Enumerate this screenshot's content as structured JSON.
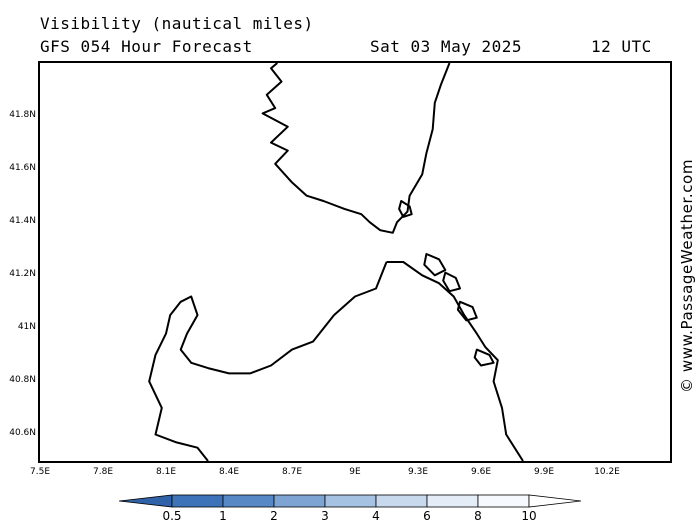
{
  "header": {
    "title": "Visibility (nautical miles)",
    "subtitle": "GFS 054 Hour Forecast",
    "date": "Sat 03 May 2025",
    "time": "12 UTC"
  },
  "watermark": "© www.PassageWeather.com",
  "map": {
    "lon_range": [
      7.5,
      10.5
    ],
    "lat_range": [
      40.5,
      42.0
    ],
    "lat_ticks": [
      {
        "value": 41.8,
        "label": "41.8N"
      },
      {
        "value": 41.6,
        "label": "41.6N"
      },
      {
        "value": 41.4,
        "label": "41.4N"
      },
      {
        "value": 41.2,
        "label": "41.2N"
      },
      {
        "value": 41.0,
        "label": "41N"
      },
      {
        "value": 40.8,
        "label": "40.8N"
      },
      {
        "value": 40.6,
        "label": "40.6N"
      }
    ],
    "lon_ticks": [
      {
        "value": 7.5,
        "label": "7.5E"
      },
      {
        "value": 7.8,
        "label": "7.8E"
      },
      {
        "value": 8.1,
        "label": "8.1E"
      },
      {
        "value": 8.4,
        "label": "8.4E"
      },
      {
        "value": 8.7,
        "label": "8.7E"
      },
      {
        "value": 9.0,
        "label": "9E"
      },
      {
        "value": 9.3,
        "label": "9.3E"
      },
      {
        "value": 9.6,
        "label": "9.6E"
      },
      {
        "value": 9.9,
        "label": "9.9E"
      },
      {
        "value": 10.2,
        "label": "10.2E"
      }
    ],
    "coastlines": {
      "corsica": [
        [
          8.63,
          42.0
        ],
        [
          8.6,
          41.98
        ],
        [
          8.65,
          41.93
        ],
        [
          8.58,
          41.88
        ],
        [
          8.62,
          41.83
        ],
        [
          8.56,
          41.81
        ],
        [
          8.68,
          41.76
        ],
        [
          8.6,
          41.7
        ],
        [
          8.68,
          41.67
        ],
        [
          8.62,
          41.62
        ],
        [
          8.7,
          41.55
        ],
        [
          8.77,
          41.5
        ],
        [
          8.85,
          41.48
        ],
        [
          8.95,
          41.45
        ],
        [
          9.03,
          41.43
        ],
        [
          9.07,
          41.4
        ],
        [
          9.12,
          41.37
        ],
        [
          9.18,
          41.36
        ],
        [
          9.2,
          41.4
        ],
        [
          9.25,
          41.44
        ],
        [
          9.26,
          41.5
        ],
        [
          9.32,
          41.58
        ],
        [
          9.34,
          41.66
        ],
        [
          9.37,
          41.75
        ],
        [
          9.38,
          41.85
        ],
        [
          9.41,
          41.92
        ],
        [
          9.45,
          42.0
        ]
      ],
      "sardinia": [
        [
          9.15,
          41.25
        ],
        [
          9.23,
          41.25
        ],
        [
          9.32,
          41.2
        ],
        [
          9.4,
          41.17
        ],
        [
          9.47,
          41.12
        ],
        [
          9.52,
          41.05
        ],
        [
          9.58,
          40.98
        ],
        [
          9.62,
          40.93
        ],
        [
          9.68,
          40.88
        ],
        [
          9.66,
          40.8
        ],
        [
          9.7,
          40.7
        ],
        [
          9.72,
          40.6
        ],
        [
          9.8,
          40.5
        ]
      ],
      "sardinia_west": [
        [
          9.15,
          41.25
        ],
        [
          9.1,
          41.15
        ],
        [
          9.0,
          41.12
        ],
        [
          8.9,
          41.05
        ],
        [
          8.8,
          40.95
        ],
        [
          8.7,
          40.92
        ],
        [
          8.6,
          40.86
        ],
        [
          8.5,
          40.83
        ],
        [
          8.4,
          40.83
        ],
        [
          8.3,
          40.85
        ],
        [
          8.22,
          40.87
        ],
        [
          8.17,
          40.92
        ],
        [
          8.2,
          40.98
        ],
        [
          8.25,
          41.05
        ],
        [
          8.22,
          41.12
        ],
        [
          8.17,
          41.1
        ],
        [
          8.12,
          41.05
        ],
        [
          8.1,
          40.98
        ],
        [
          8.05,
          40.9
        ],
        [
          8.02,
          40.8
        ],
        [
          8.08,
          40.7
        ],
        [
          8.05,
          40.6
        ],
        [
          8.15,
          40.57
        ],
        [
          8.25,
          40.55
        ],
        [
          8.3,
          40.5
        ]
      ]
    },
    "islands": [
      [
        [
          9.34,
          41.28
        ],
        [
          9.4,
          41.26
        ],
        [
          9.43,
          41.22
        ],
        [
          9.38,
          41.2
        ],
        [
          9.33,
          41.24
        ]
      ],
      [
        [
          9.43,
          41.21
        ],
        [
          9.48,
          41.19
        ],
        [
          9.5,
          41.15
        ],
        [
          9.45,
          41.14
        ],
        [
          9.42,
          41.18
        ]
      ],
      [
        [
          9.5,
          41.1
        ],
        [
          9.56,
          41.08
        ],
        [
          9.58,
          41.04
        ],
        [
          9.53,
          41.03
        ],
        [
          9.49,
          41.07
        ]
      ],
      [
        [
          9.58,
          40.92
        ],
        [
          9.64,
          40.9
        ],
        [
          9.66,
          40.87
        ],
        [
          9.6,
          40.86
        ],
        [
          9.57,
          40.89
        ]
      ],
      [
        [
          9.22,
          41.48
        ],
        [
          9.26,
          41.46
        ],
        [
          9.27,
          41.43
        ],
        [
          9.23,
          41.42
        ],
        [
          9.21,
          41.45
        ]
      ]
    ]
  },
  "legend": {
    "labels": [
      "0.5",
      "1",
      "2",
      "3",
      "4",
      "6",
      "8",
      "10"
    ],
    "colors": [
      "#3d73b8",
      "#5688c6",
      "#7ea4d3",
      "#a6c2e2",
      "#c8d9ee",
      "#e3ecf7",
      "#f6f9fd",
      "#ffffff"
    ]
  }
}
